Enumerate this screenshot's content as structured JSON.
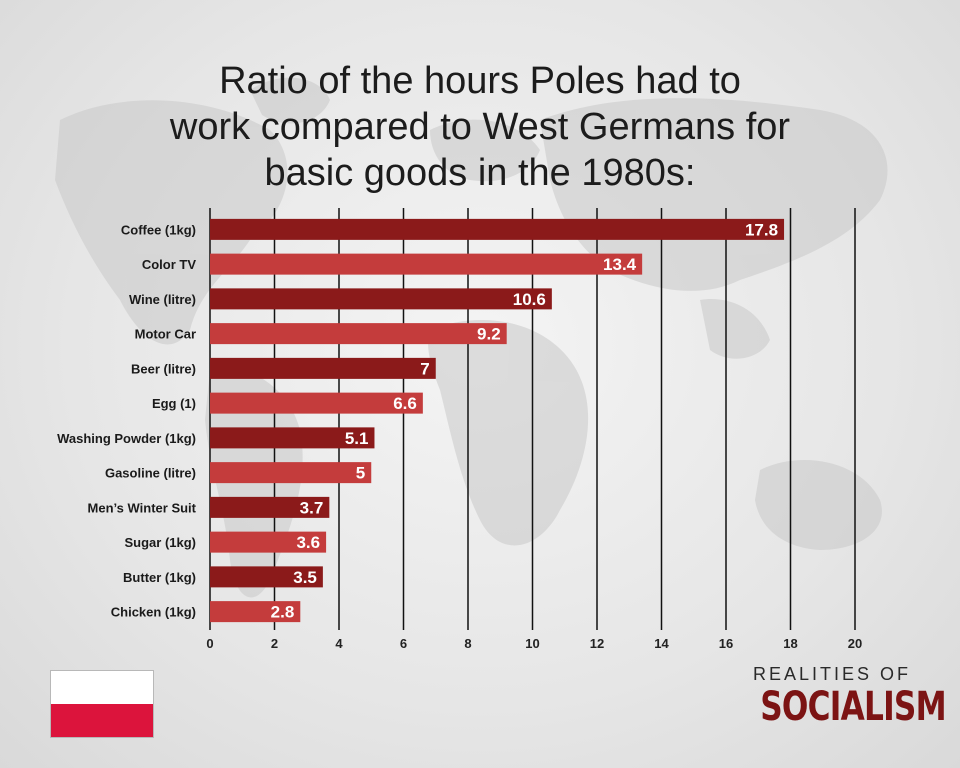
{
  "title_lines": [
    "Ratio of the hours Poles had to",
    "work compared to West Germans for",
    "basic goods in the 1980s:"
  ],
  "brand": {
    "top": "REALITIES OF",
    "main": "SOCIALISM"
  },
  "colors": {
    "dark_bar": "#8b1a1a",
    "light_bar": "#c43c3c",
    "flag_white": "#ffffff",
    "flag_red": "#dc143c"
  },
  "chart_data": {
    "type": "bar",
    "orientation": "horizontal",
    "title": "Ratio of the hours Poles had to work compared to West Germans for basic goods in the 1980s:",
    "categories": [
      "Coffee (1kg)",
      "Color TV",
      "Wine (litre)",
      "Motor Car",
      "Beer (litre)",
      "Egg (1)",
      "Washing Powder (1kg)",
      "Gasoline (litre)",
      "Men’s Winter Suit",
      "Sugar (1kg)",
      "Butter (1kg)",
      "Chicken (1kg)"
    ],
    "values": [
      17.8,
      13.4,
      10.6,
      9.2,
      7,
      6.6,
      5.1,
      5,
      3.7,
      3.6,
      3.5,
      2.8
    ],
    "value_labels": [
      "17.8",
      "13.4",
      "10.6",
      "9.2",
      "7",
      "6.6",
      "5.1",
      "5",
      "3.7",
      "3.6",
      "3.5",
      "2.8"
    ],
    "xlim": [
      0,
      20
    ],
    "xticks": [
      "0",
      "2",
      "4",
      "6",
      "8",
      "10",
      "12",
      "14",
      "16",
      "18",
      "20"
    ],
    "grid": "vertical",
    "legend": "none",
    "bar_colors": "alternating dark red / light red"
  }
}
